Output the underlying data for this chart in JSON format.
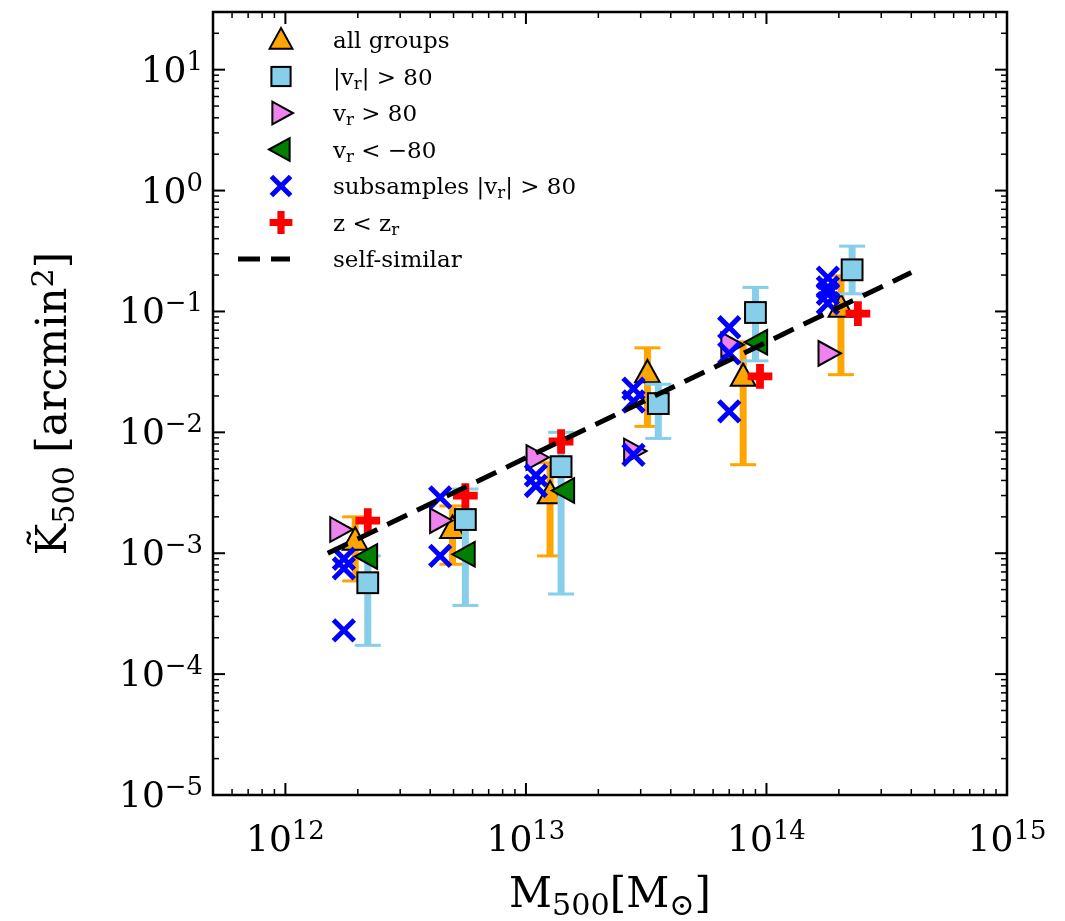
{
  "chart_data": {
    "type": "scatter",
    "xlabel": "M$_{500}$[M$_{⊙}$]",
    "ylabel": "K̃$_{500}$ [arcmin$^{2}$]",
    "log": "xy",
    "xlim": [
      500000000000.0,
      1000000000000000.0
    ],
    "ylim": [
      1e-05,
      30
    ],
    "xticks": [
      {
        "value": 1000000000000.0,
        "label": "10$^{12}$"
      },
      {
        "value": 10000000000000.0,
        "label": "10$^{13}$"
      },
      {
        "value": 100000000000000.0,
        "label": "10$^{14}$"
      },
      {
        "value": 1000000000000000.0,
        "label": "10$^{15}$"
      }
    ],
    "yticks": [
      {
        "value": 1e-05,
        "label": "10$^{−5}$"
      },
      {
        "value": 0.0001,
        "label": "10$^{−4}$"
      },
      {
        "value": 0.001,
        "label": "10$^{−3}$"
      },
      {
        "value": 0.01,
        "label": "10$^{−2}$"
      },
      {
        "value": 0.1,
        "label": "10$^{−1}$"
      },
      {
        "value": 1,
        "label": "10$^{0}$"
      },
      {
        "value": 10,
        "label": "10$^{1}$"
      }
    ],
    "grid": false,
    "legend": "top left",
    "series": [
      {
        "name": "all groups",
        "color": "#ffa500",
        "marker": "triangle",
        "x": [
          1950000000000.0,
          4950000000000.0,
          12600000000000.0,
          32000000000000.0,
          80000000000000.0,
          204000000000000.0
        ],
        "values": [
          0.00128,
          0.0016,
          0.0031,
          0.031,
          0.029,
          0.108
        ],
        "errors": [
          [
            0.00059,
            0.002
          ],
          [
            0.00081,
            0.00246
          ],
          [
            0.00095,
            0.0056
          ],
          [
            0.0112,
            0.05
          ],
          [
            0.0054,
            0.056
          ],
          [
            0.03,
            0.197
          ]
        ]
      },
      {
        "name": "|v$_{r}$| > 80",
        "color": "#87ceeb",
        "marker": "square",
        "x": [
          2200000000000.0,
          5600000000000.0,
          14000000000000.0,
          35500000000000.0,
          90000000000000.0,
          227000000000000.0
        ],
        "values": [
          0.00057,
          0.0019,
          0.0052,
          0.0173,
          0.098,
          0.221
        ],
        "errors": [
          [
            0.000173,
            0.00095
          ],
          [
            0.00037,
            0.0034
          ],
          [
            0.00046,
            0.01
          ],
          [
            0.0089,
            0.025
          ],
          [
            0.039,
            0.158
          ],
          [
            0.14,
            0.347
          ]
        ]
      },
      {
        "name": "v$_{r}$ > 80",
        "color": "#ee82ee",
        "marker": "triangle-right",
        "x": [
          1680000000000.0,
          4370000000000.0,
          11000000000000.0,
          28000000000000.0,
          71000000000000.0,
          180000000000000.0
        ],
        "values": [
          0.00157,
          0.00186,
          0.0062,
          0.007,
          0.053,
          0.045
        ]
      },
      {
        "name": "v$_{r}$ < −80",
        "color": "#008000",
        "marker": "triangle-left",
        "x": [
          2200000000000.0,
          5600000000000.0,
          14500000000000.0,
          null,
          92000000000000.0,
          null
        ],
        "values": [
          0.00094,
          0.00098,
          0.0033,
          null,
          0.0557,
          null
        ]
      },
      {
        "name": "subsamples |v$_{r}$| > 80",
        "color": "#0000ff",
        "marker": "x",
        "x": [
          1750000000000.0,
          1750000000000.0,
          1750000000000.0,
          4400000000000.0,
          4400000000000.0,
          11000000000000.0,
          11000000000000.0,
          28000000000000.0,
          28000000000000.0,
          28000000000000.0,
          70000000000000.0,
          70000000000000.0,
          70000000000000.0,
          180000000000000.0,
          180000000000000.0,
          180000000000000.0,
          180000000000000.0
        ],
        "values": [
          0.0009,
          0.00075,
          0.00023,
          0.0029,
          0.00095,
          0.0036,
          0.0044,
          0.023,
          0.018,
          0.0065,
          0.074,
          0.045,
          0.0149,
          0.19,
          0.158,
          0.14,
          0.117
        ]
      },
      {
        "name": "z < z$_{r}$",
        "color": "#ff0000",
        "marker": "cross",
        "x": [
          2200000000000.0,
          5600000000000.0,
          14000000000000.0,
          null,
          94000000000000.0,
          240000000000000.0
        ],
        "values": [
          0.00186,
          0.003,
          0.0084,
          null,
          0.029,
          0.096
        ]
      },
      {
        "name": "self-similar",
        "type": "line",
        "color": "#000000",
        "line_style": "dashed",
        "marker": "none",
        "x": [
          1500000000000.0,
          400000000000000.0
        ],
        "values": [
          0.001,
          0.21
        ]
      }
    ]
  }
}
